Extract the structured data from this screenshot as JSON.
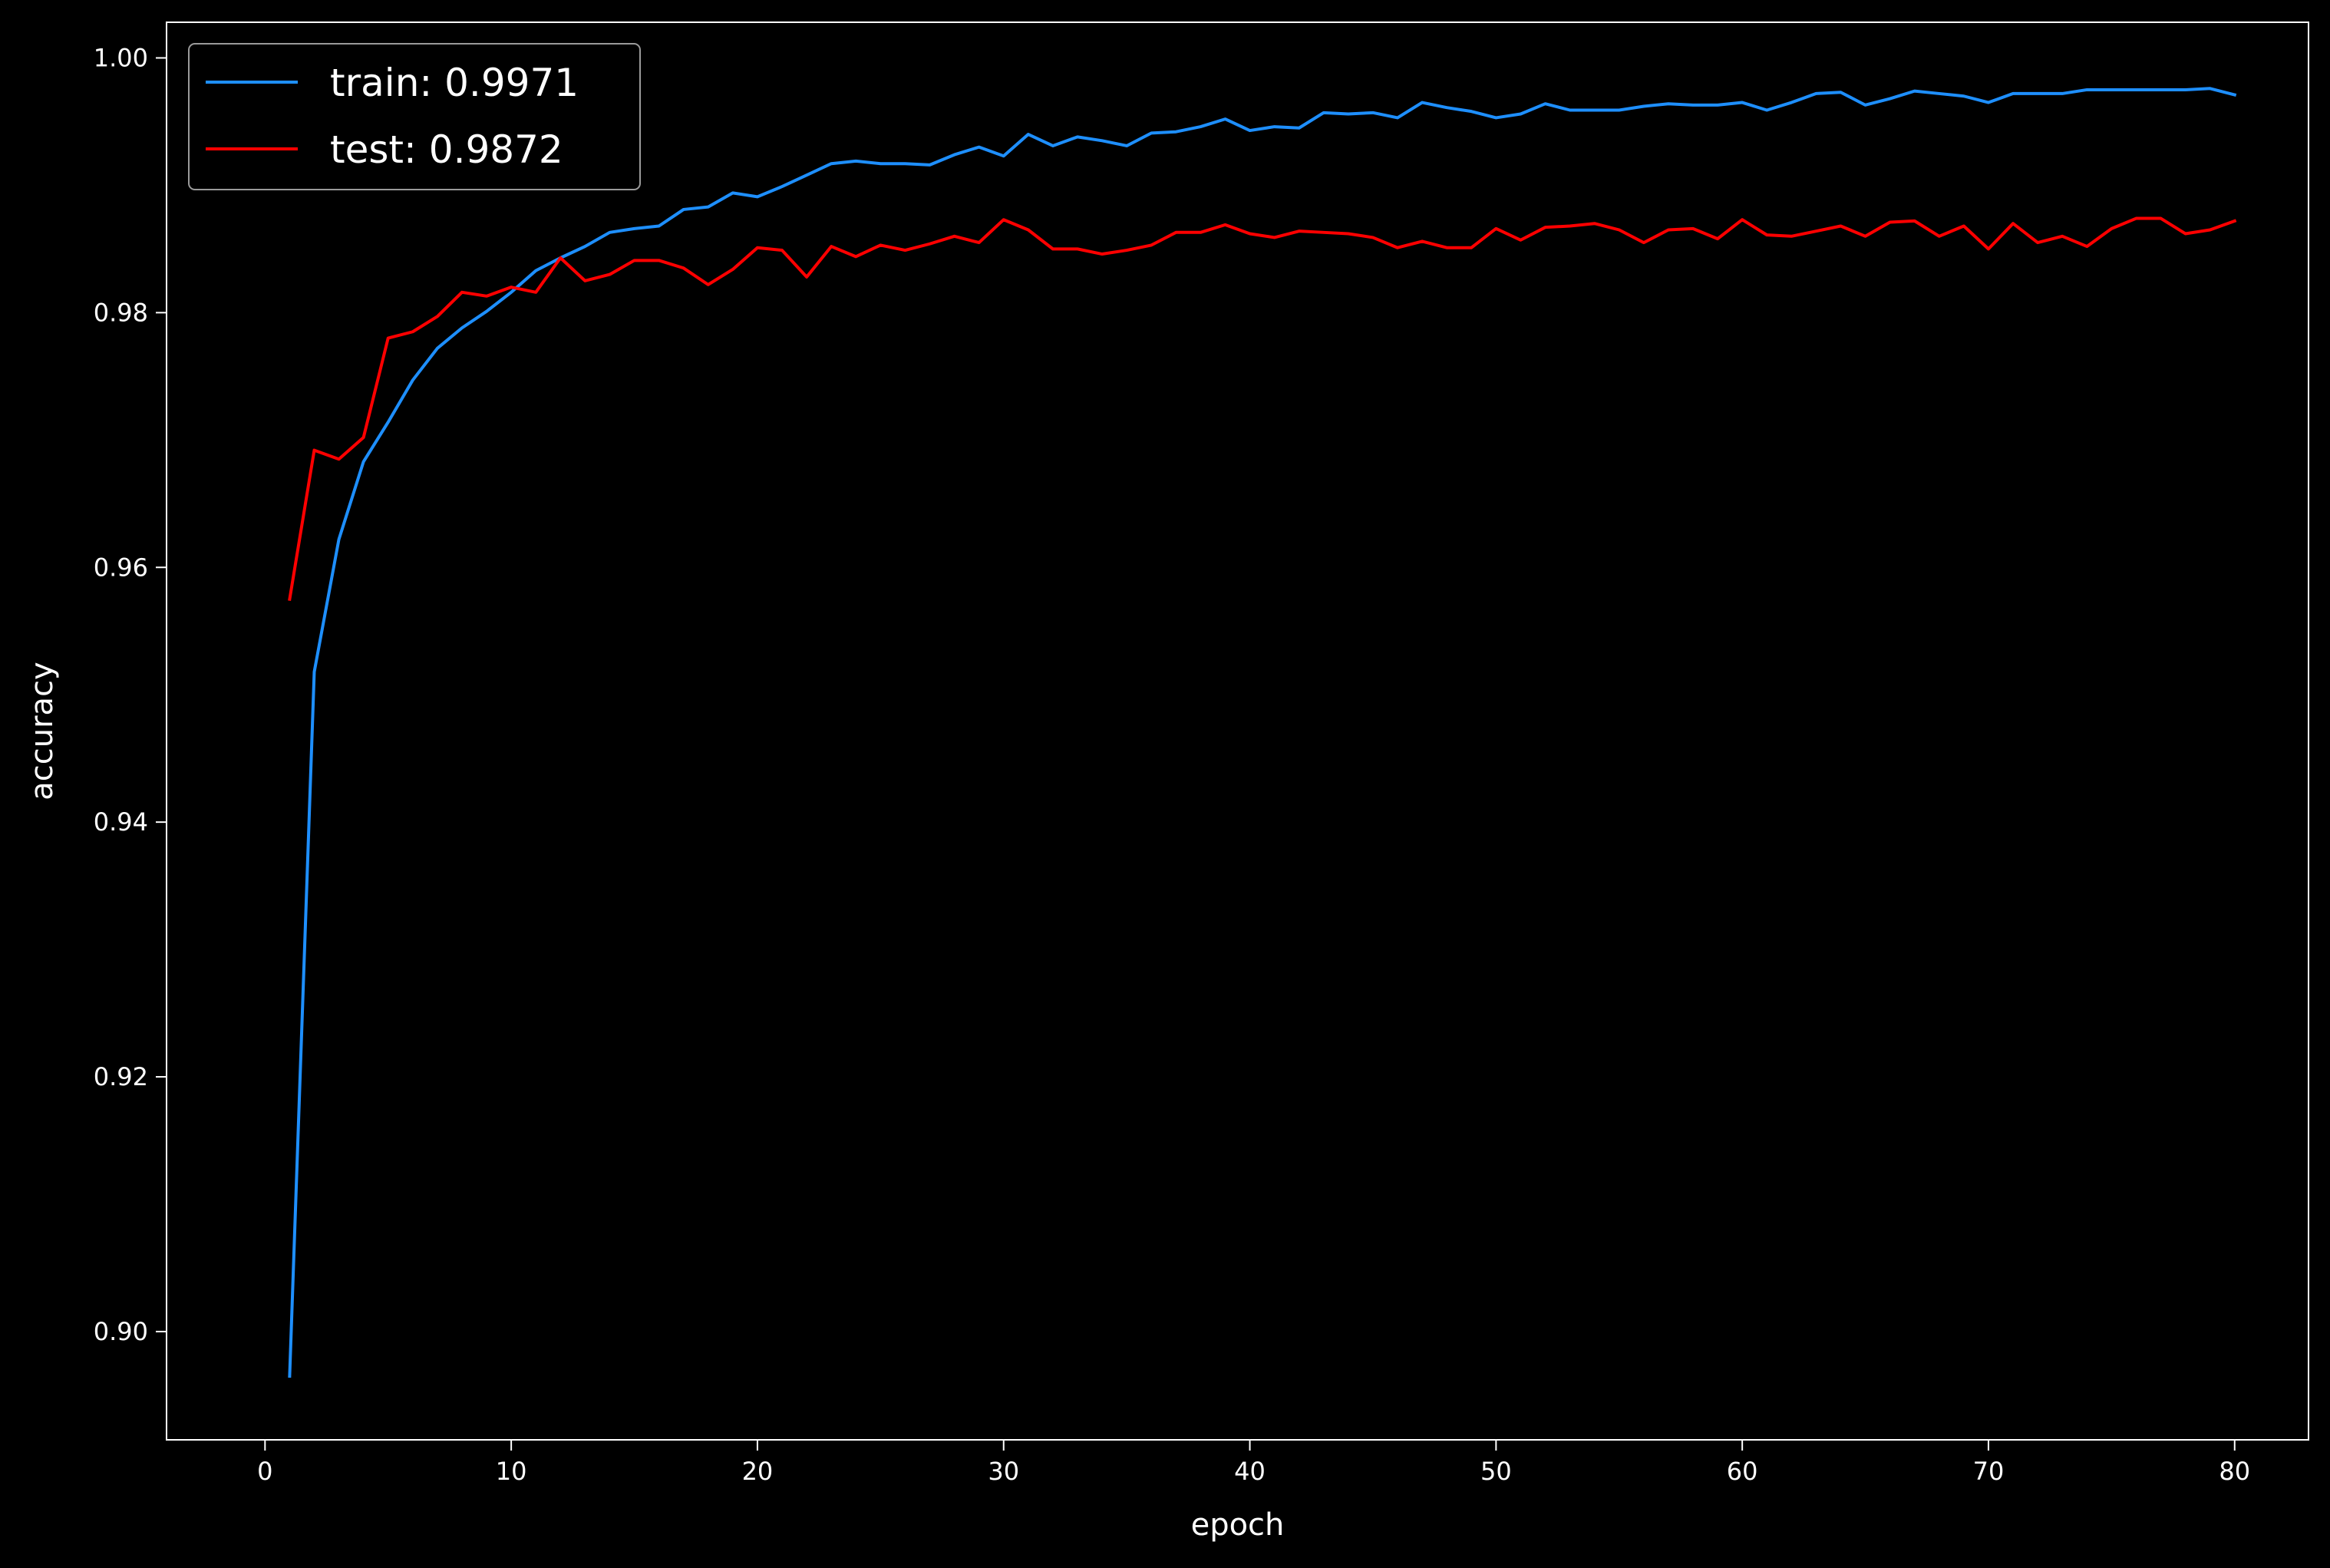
{
  "chart_data": {
    "type": "line",
    "xlabel": "epoch",
    "ylabel": "accuracy",
    "xlim": [
      -4,
      83
    ],
    "ylim": [
      0.8915,
      1.0028
    ],
    "xticks": [
      0,
      10,
      20,
      30,
      40,
      50,
      60,
      70,
      80
    ],
    "yticks": [
      0.9,
      0.92,
      0.94,
      0.96,
      0.98,
      1.0
    ],
    "xtick_labels": [
      "0",
      "10",
      "20",
      "30",
      "40",
      "50",
      "60",
      "70",
      "80"
    ],
    "ytick_labels": [
      "0.90",
      "0.92",
      "0.94",
      "0.96",
      "0.98",
      "1.00"
    ],
    "grid": false,
    "legend_position": "top-left",
    "background_color": "#000000",
    "series": [
      {
        "name": "train: 0.9971",
        "color": "#1e8fff",
        "x": [
          1,
          2,
          3,
          4,
          5,
          6,
          7,
          8,
          9,
          10,
          11,
          12,
          13,
          14,
          15,
          16,
          17,
          18,
          19,
          20,
          21,
          22,
          23,
          24,
          25,
          26,
          27,
          28,
          29,
          30,
          31,
          32,
          33,
          34,
          35,
          36,
          37,
          38,
          39,
          40,
          41,
          42,
          43,
          44,
          45,
          46,
          47,
          48,
          49,
          50,
          51,
          52,
          53,
          54,
          55,
          56,
          57,
          58,
          59,
          60,
          61,
          62,
          63,
          64,
          65,
          66,
          67,
          68,
          69,
          70,
          71,
          72,
          73,
          74,
          75,
          76,
          77,
          78,
          79,
          80
        ],
        "values": [
          0.8965,
          0.9518,
          0.9622,
          0.9683,
          0.9714,
          0.9747,
          0.9772,
          0.9788,
          0.9801,
          0.9816,
          0.9833,
          0.9843,
          0.9852,
          0.9863,
          0.9866,
          0.9868,
          0.9881,
          0.9883,
          0.9894,
          0.9891,
          0.9899,
          0.9908,
          0.9917,
          0.9919,
          0.9917,
          0.9917,
          0.9916,
          0.9924,
          0.993,
          0.9923,
          0.994,
          0.9931,
          0.9938,
          0.9935,
          0.9931,
          0.9941,
          0.9942,
          0.9946,
          0.9952,
          0.9943,
          0.9946,
          0.9945,
          0.9957,
          0.9956,
          0.9957,
          0.9953,
          0.9965,
          0.9961,
          0.9958,
          0.9953,
          0.9956,
          0.9964,
          0.9959,
          0.9959,
          0.9959,
          0.9962,
          0.9964,
          0.9963,
          0.9963,
          0.9965,
          0.9959,
          0.9965,
          0.9972,
          0.9973,
          0.9963,
          0.9968,
          0.9974,
          0.9972,
          0.997,
          0.9965,
          0.9972,
          0.9972,
          0.9972,
          0.9975,
          0.9975,
          0.9975,
          0.9975,
          0.9975,
          0.9976,
          0.9971
        ]
      },
      {
        "name": "test: 0.9872",
        "color": "#ff0000",
        "x": [
          1,
          2,
          3,
          4,
          5,
          6,
          7,
          8,
          9,
          10,
          11,
          12,
          13,
          14,
          15,
          16,
          17,
          18,
          19,
          20,
          21,
          22,
          23,
          24,
          25,
          26,
          27,
          28,
          29,
          30,
          31,
          32,
          33,
          34,
          35,
          36,
          37,
          38,
          39,
          40,
          41,
          42,
          43,
          44,
          45,
          46,
          47,
          48,
          49,
          50,
          51,
          52,
          53,
          54,
          55,
          56,
          57,
          58,
          59,
          60,
          61,
          62,
          63,
          64,
          65,
          66,
          67,
          68,
          69,
          70,
          71,
          72,
          73,
          74,
          75,
          76,
          77,
          78,
          79,
          80
        ],
        "values": [
          0.9575,
          0.9692,
          0.9685,
          0.9702,
          0.978,
          0.9785,
          0.9797,
          0.9816,
          0.9813,
          0.982,
          0.9816,
          0.9843,
          0.9825,
          0.983,
          0.9841,
          0.9841,
          0.9835,
          0.9822,
          0.9834,
          0.9851,
          0.9849,
          0.9828,
          0.9852,
          0.9844,
          0.9853,
          0.9849,
          0.9854,
          0.986,
          0.9855,
          0.9873,
          0.9865,
          0.985,
          0.985,
          0.9846,
          0.9849,
          0.9853,
          0.9863,
          0.9863,
          0.9869,
          0.9862,
          0.9859,
          0.9864,
          0.9863,
          0.9862,
          0.9859,
          0.9851,
          0.9856,
          0.9851,
          0.9851,
          0.9866,
          0.9857,
          0.9867,
          0.9868,
          0.987,
          0.9865,
          0.9855,
          0.9865,
          0.9866,
          0.9858,
          0.9873,
          0.9861,
          0.986,
          0.9864,
          0.9868,
          0.986,
          0.9871,
          0.9872,
          0.986,
          0.9868,
          0.985,
          0.987,
          0.9855,
          0.986,
          0.9852,
          0.9866,
          0.9874,
          0.9874,
          0.9862,
          0.9865,
          0.9872
        ]
      }
    ]
  }
}
